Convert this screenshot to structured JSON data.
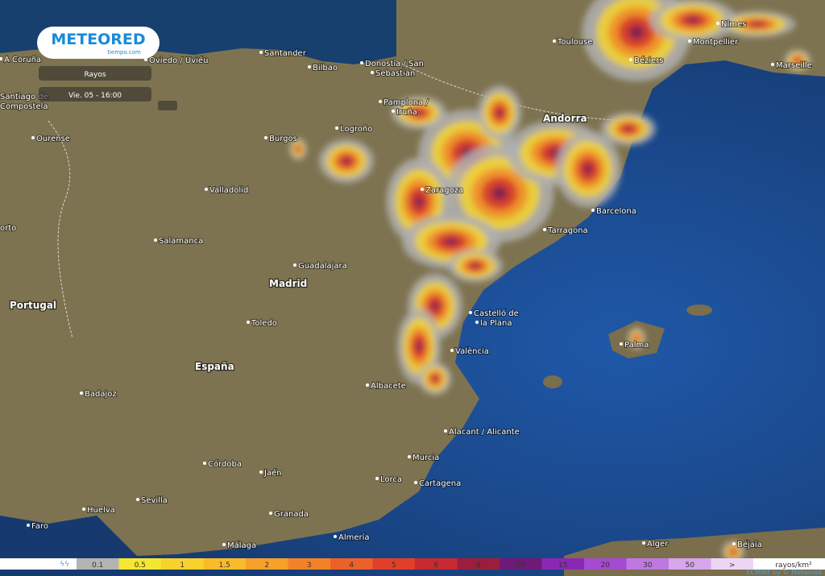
{
  "brand": {
    "name": "METEORED",
    "site": "tiempo.com"
  },
  "panel": {
    "layer": "Rayos",
    "time": "Vie. 05 - 16:00"
  },
  "cities": [
    "A Coruña",
    "Oviedo / Uviéu",
    "Santander",
    "Bilbao",
    "Donostia / San",
    "Sebastián",
    "Toulouse",
    "Nîmes",
    "Montpellier",
    "Béziers",
    "Marseille",
    "Santiago de",
    "Compostela",
    "Pamplona /",
    "Iruña",
    "Logroño",
    "Burgos",
    "Ourense",
    "Valladolid",
    "Zaragoza",
    "Barcelona",
    "Tarragona",
    "Salamanca",
    "Guadalajara",
    "Toledo",
    "Castelló de",
    "la Plana",
    "Palma",
    "València",
    "Badajoz",
    "Albacete",
    "Alacant / Alicante",
    "Murcia",
    "Córdoba",
    "Jaén",
    "Sevilla",
    "Lorca",
    "Cartagena",
    "Granada",
    "Huelva",
    "Faro",
    "Málaga",
    "Almería",
    "Alger",
    "Béjaïa",
    "orto"
  ],
  "major": [
    "Andorra",
    "Madrid",
    "Portugal",
    "España"
  ],
  "legend": {
    "items": [
      {
        "label": "0.1",
        "color": "#b4b4b4"
      },
      {
        "label": "0.5",
        "color": "#f5e632"
      },
      {
        "label": "1",
        "color": "#f8d22c"
      },
      {
        "label": "1.5",
        "color": "#f9bb2a"
      },
      {
        "label": "2",
        "color": "#f7a02a"
      },
      {
        "label": "3",
        "color": "#f2822a"
      },
      {
        "label": "4",
        "color": "#ec6128"
      },
      {
        "label": "5",
        "color": "#e13f2a"
      },
      {
        "label": "6",
        "color": "#c62a32"
      },
      {
        "label": "8",
        "color": "#9c1e3c"
      },
      {
        "label": "10",
        "color": "#6e1a78"
      },
      {
        "label": "15",
        "color": "#8a28b4"
      },
      {
        "label": "20",
        "color": "#a64ad2"
      },
      {
        "label": "30",
        "color": "#bf78e0"
      },
      {
        "label": "50",
        "color": "#d7a6ec"
      },
      {
        "label": ">",
        "color": "#ecd6f6"
      }
    ],
    "unit": "rayos/km²"
  },
  "credit": "ECMWF by © Meteored"
}
